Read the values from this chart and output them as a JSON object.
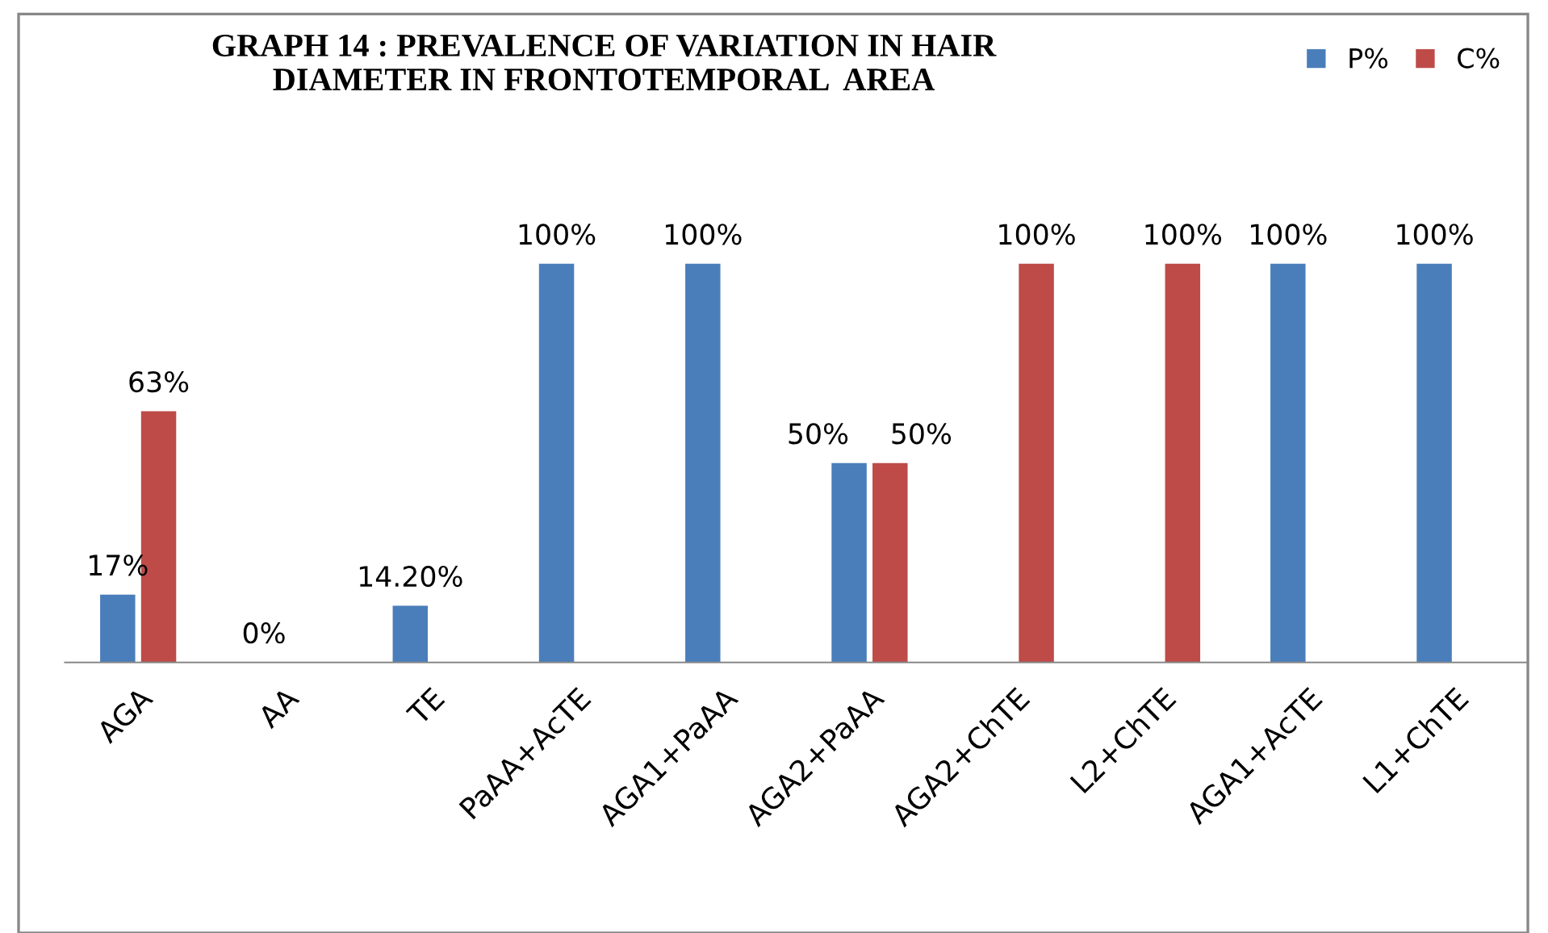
{
  "chart_data": {
    "type": "bar",
    "title": "GRAPH 14 : PREVALENCE OF VARIATION IN HAIR\nDIAMETER IN FRONTOTEMPORAL  AREA",
    "categories": [
      "AGA",
      "AA",
      "TE",
      "PaAA+AcTE",
      "AGA1+PaAA",
      "AGA2+PaAA",
      "AGA2+ChTE",
      "L2+ChTE",
      "AGA1+AcTE",
      "L1+ChTE"
    ],
    "series": [
      {
        "name": "P%",
        "color": "#4a7ebb",
        "values": [
          17,
          0,
          14.2,
          100,
          100,
          50,
          null,
          null,
          100,
          100
        ],
        "value_labels": [
          "17%",
          "0%",
          "14.20%",
          "100%",
          "100%",
          "50%",
          null,
          null,
          "100%",
          "100%"
        ]
      },
      {
        "name": "C%",
        "color": "#be4b48",
        "values": [
          63,
          null,
          null,
          null,
          null,
          50,
          100,
          100,
          null,
          null
        ],
        "value_labels": [
          "63%",
          null,
          null,
          null,
          null,
          "50%",
          "100%",
          "100%",
          null,
          null
        ]
      }
    ],
    "tick_labels": "x",
    "legend": "top right",
    "grid": false
  }
}
